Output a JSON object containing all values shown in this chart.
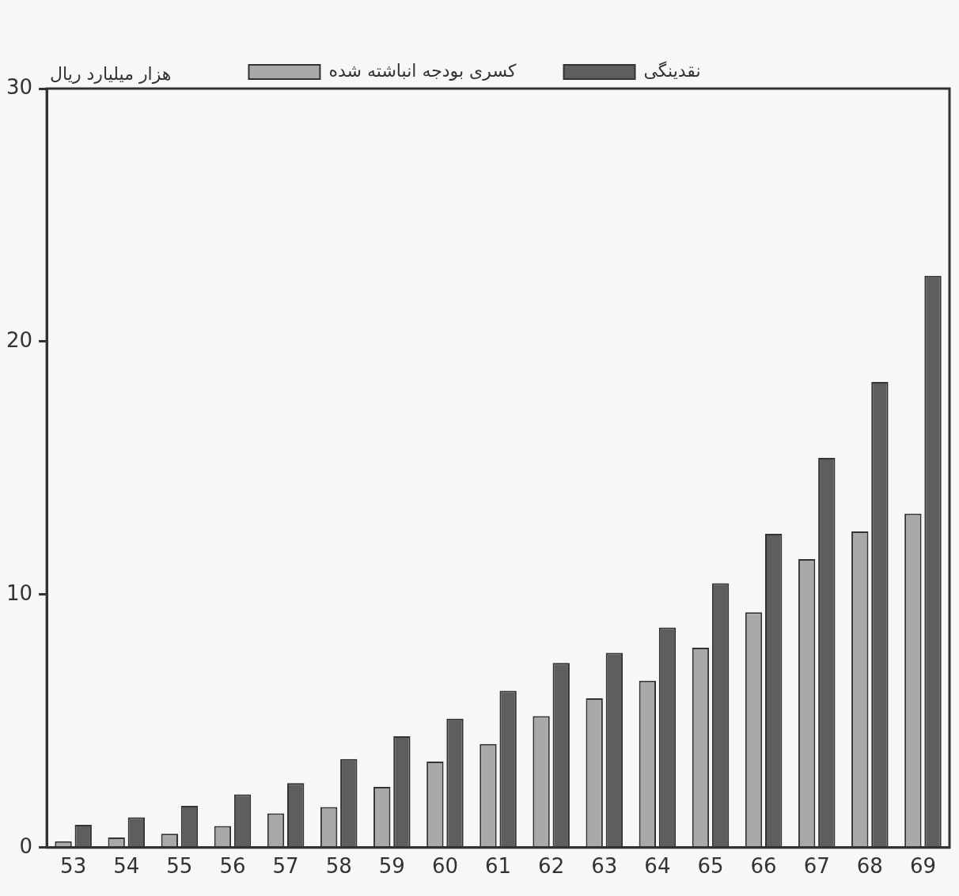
{
  "chart_data": {
    "type": "bar",
    "ylabel": "هزار میلیارد ریال",
    "categories": [
      "53",
      "54",
      "55",
      "56",
      "57",
      "58",
      "59",
      "60",
      "61",
      "62",
      "63",
      "64",
      "65",
      "66",
      "67",
      "68",
      "69"
    ],
    "series": [
      {
        "name": "کسری بودجه انباشته شده",
        "color": "#a9a9a9",
        "values": [
          0.25,
          0.4,
          0.55,
          0.85,
          1.35,
          1.6,
          2.4,
          3.4,
          4.1,
          5.2,
          5.9,
          6.6,
          7.9,
          9.3,
          11.4,
          12.5,
          13.2
        ]
      },
      {
        "name": "نقدینگی",
        "color": "#5e5e5e",
        "values": [
          0.9,
          1.2,
          1.65,
          2.1,
          2.55,
          3.5,
          4.4,
          5.1,
          6.2,
          7.3,
          7.7,
          8.7,
          10.45,
          12.4,
          15.4,
          18.4,
          22.6
        ]
      }
    ],
    "ylim": [
      0,
      30
    ],
    "yticks": [
      0,
      10,
      20,
      30
    ],
    "grid": false,
    "legend": "top"
  }
}
